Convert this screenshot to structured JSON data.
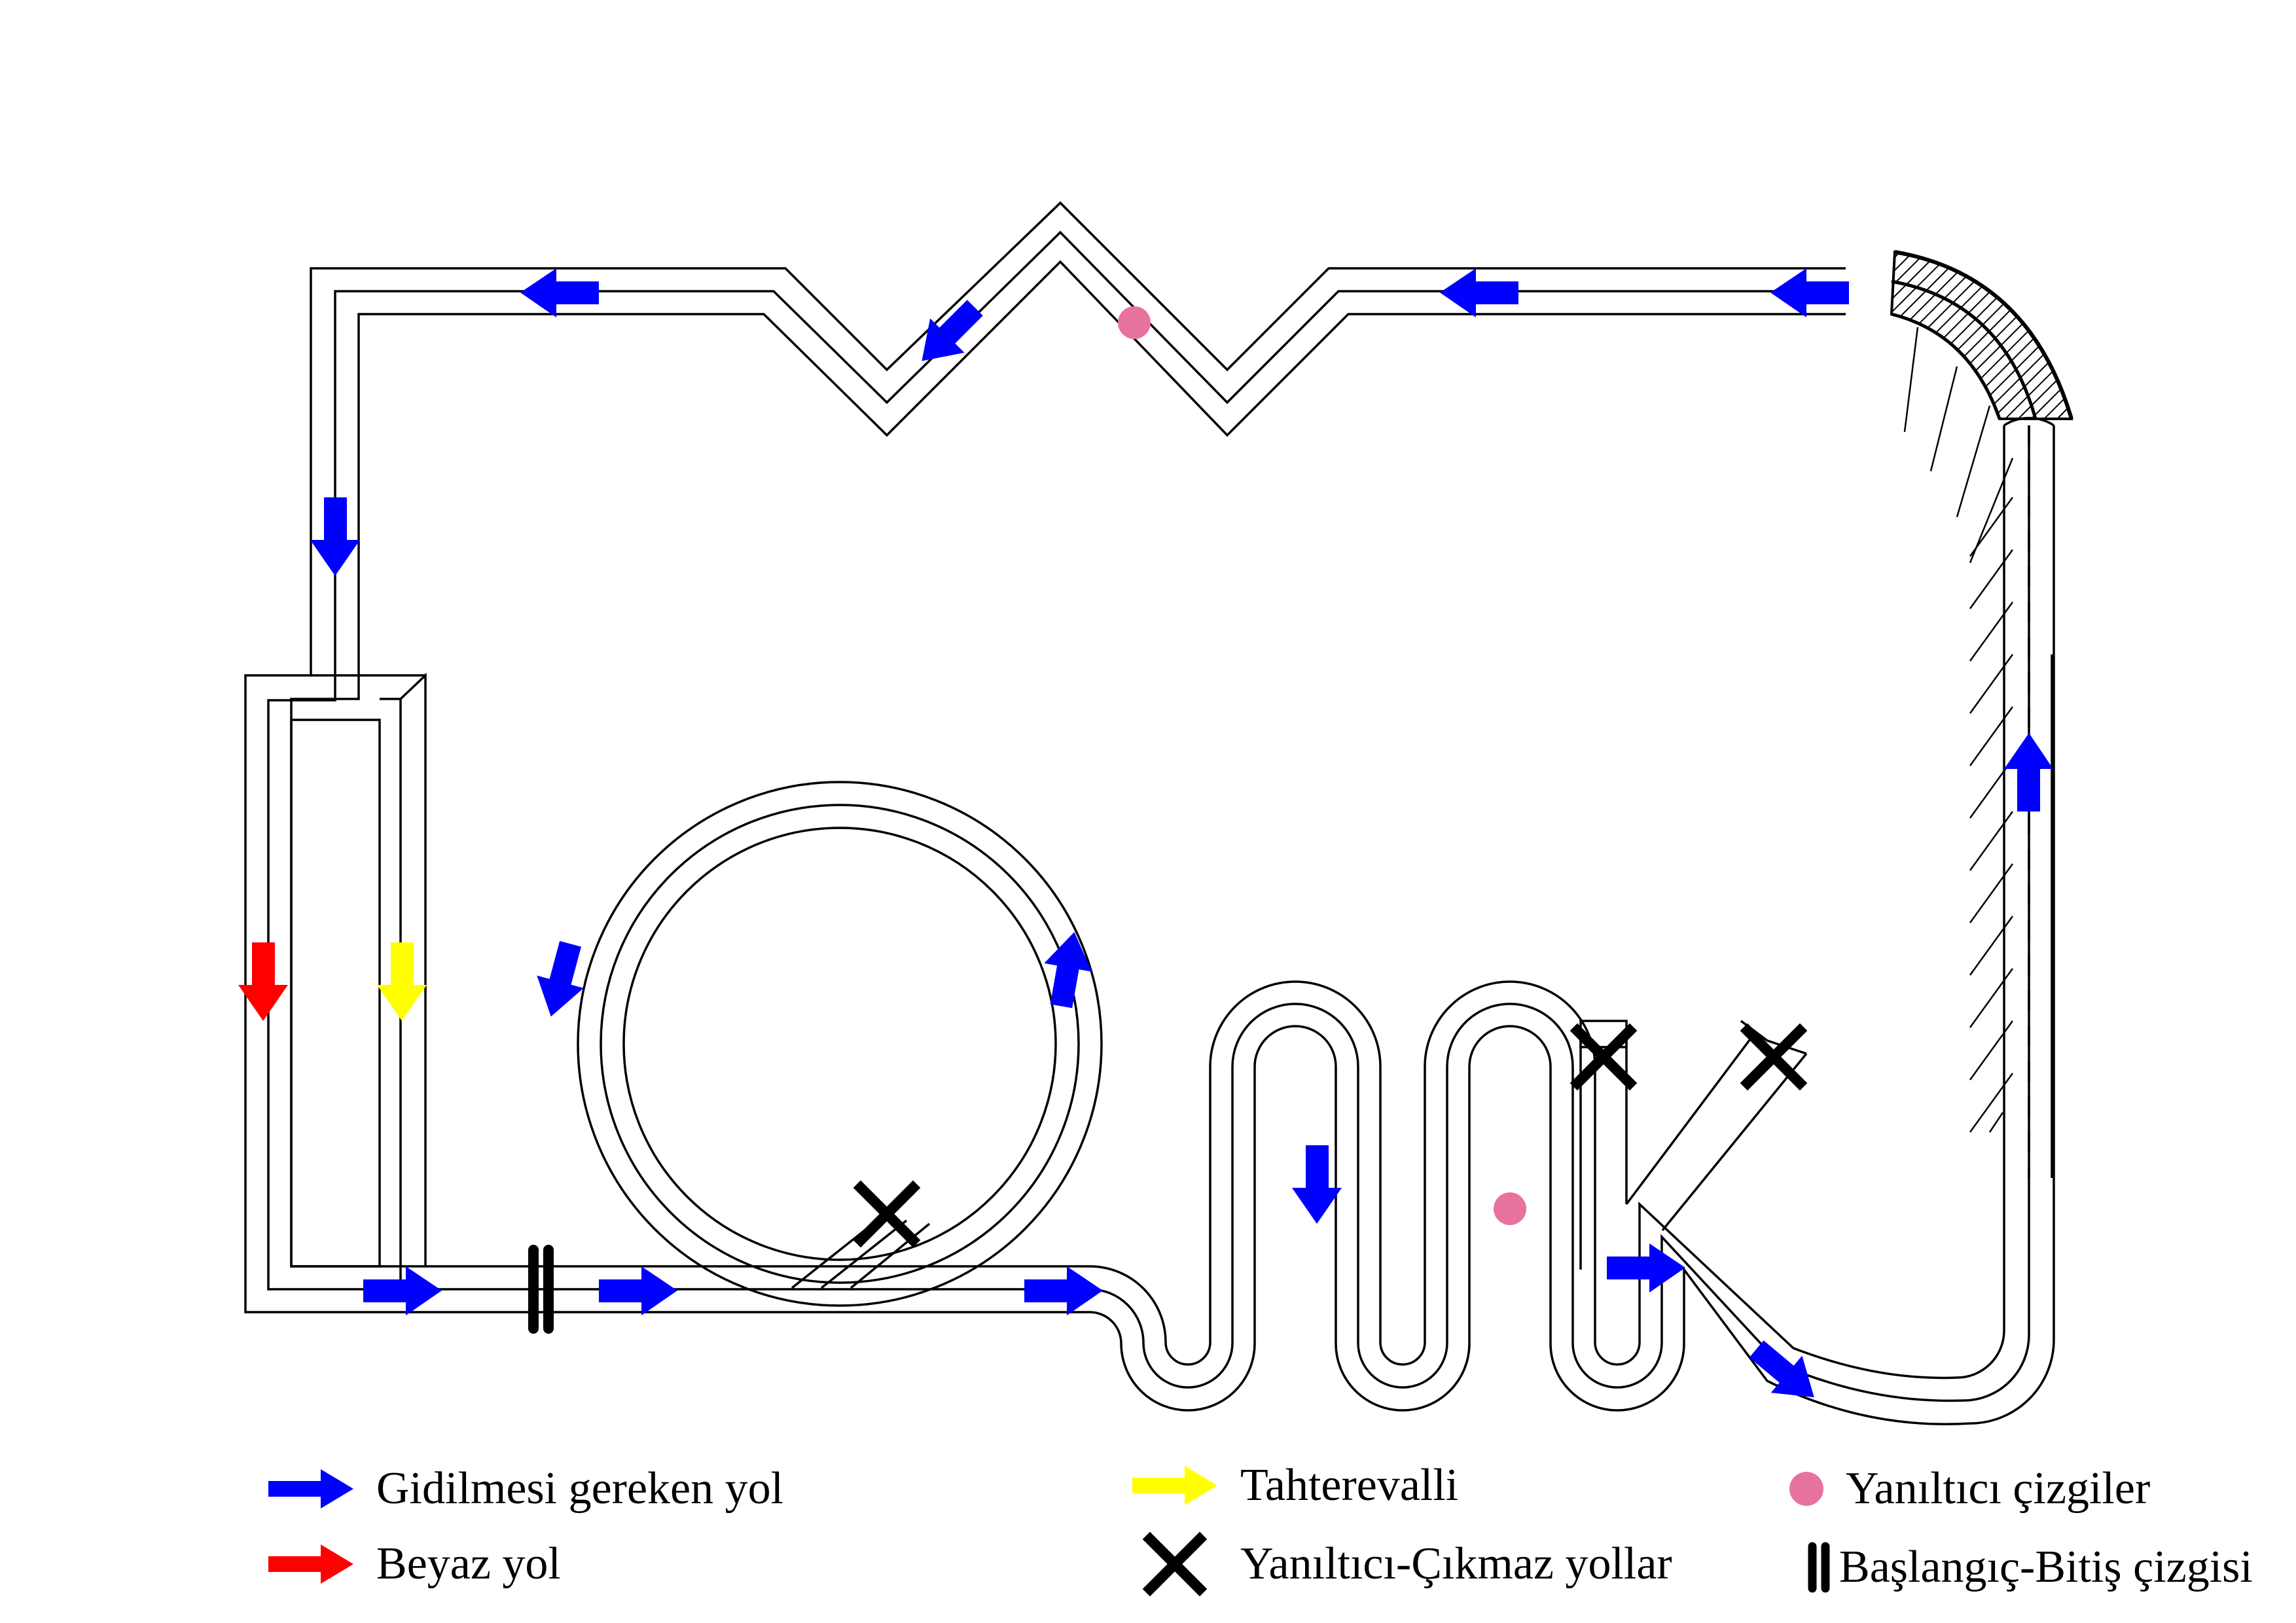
{
  "colors": {
    "path_arrow": "#0000ff",
    "white_path_arrow": "#ff0000",
    "seesaw_arrow": "#ffff00",
    "misleading_dot": "#e8729e",
    "dead_end_cross": "#000000",
    "start_finish": "#000000",
    "track_line": "#000000"
  },
  "legend": {
    "path": {
      "label": "Gidilmesi gereken yol",
      "icon": "blue-arrow-icon"
    },
    "white_path": {
      "label": "Beyaz yol",
      "icon": "red-arrow-icon"
    },
    "seesaw": {
      "label": "Tahterevalli",
      "icon": "yellow-arrow-icon"
    },
    "dead_ends": {
      "label": "Yanıltıcı-Çıkmaz yollar",
      "icon": "x-cross-icon"
    },
    "misleading_lines": {
      "label": "Yanıltıcı çizgiler",
      "icon": "pink-dot-icon"
    },
    "start_finish": {
      "label": "Başlangıç-Bitiş çizgisi",
      "icon": "double-bar-icon"
    }
  }
}
